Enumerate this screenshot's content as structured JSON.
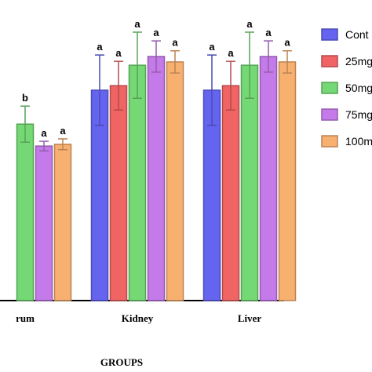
{
  "chart_data": {
    "type": "bar",
    "x_label": "GROUPS",
    "categories": [
      "rum",
      "Kidney",
      "Liver"
    ],
    "ylim": [
      0,
      100
    ],
    "series": [
      {
        "name": "Cont",
        "color": "#6464f0",
        "values": [
          null,
          70.0,
          70.0
        ],
        "errors": [
          null,
          11.7,
          11.7
        ],
        "letters": [
          null,
          "a",
          "a"
        ]
      },
      {
        "name": "25mg",
        "color": "#f06464",
        "values": [
          null,
          71.5,
          71.5
        ],
        "errors": [
          null,
          8.1,
          8.1
        ],
        "letters": [
          null,
          "a",
          "a"
        ]
      },
      {
        "name": "50mg",
        "color": "#74d874",
        "values": [
          58.7,
          78.3,
          78.3
        ],
        "errors": [
          6.0,
          11.0,
          11.0
        ],
        "letters": [
          "b",
          "a",
          "a"
        ]
      },
      {
        "name": "75mg",
        "color": "#c47ae8",
        "values": [
          51.4,
          81.2,
          81.2
        ],
        "errors": [
          1.6,
          5.2,
          5.2
        ],
        "letters": [
          "a",
          "a",
          "a"
        ]
      },
      {
        "name": "100m",
        "color": "#f8b070",
        "values": [
          52.0,
          79.4,
          79.4
        ],
        "errors": [
          1.8,
          3.7,
          3.7
        ],
        "letters": [
          "a",
          "a",
          "a"
        ]
      }
    ]
  }
}
